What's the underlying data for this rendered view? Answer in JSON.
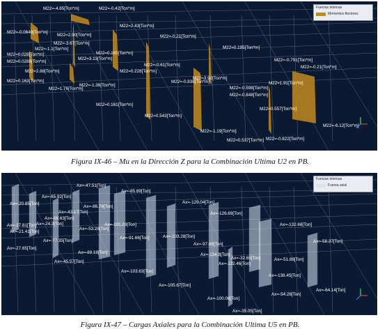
{
  "figure1": {
    "caption": "Figura IX-46 – Mu en la Dirección Z para la Combinación Ultima U2 en PB.",
    "legend_title": "Fuerzas internas",
    "legend_item": "Momentos flectores",
    "legend_color": "#c28a1e",
    "labels": [
      "M22=-4.65[Ton*m]",
      "M22=-0.42[Ton*m]",
      "M22=-0.0646[Ton*m]",
      "M22=2.90[Ton*m]",
      "M22=2.43[Ton*m]",
      "M22=-3.67[Ton*m]",
      "M22=-0.21[Ton*m]",
      "M22=-1.1[Ton*m]",
      "M22=0.028[Ton*m]",
      "M22=0.165[Ton*m]",
      "M22=0.195[Ton*m]",
      "M22=0.0286[Ton*m]",
      "M22=3.13[Ton*m]",
      "M22=-0.61[Ton*m]",
      "M22=-0.791[Ton*m]",
      "M22=-0.21[Ton*m]",
      "M22=2.88[Ton*m]",
      "M22=0.228[Ton*m]",
      "M22=3.92[Ton*m]",
      "M22=0.163[Ton*m]",
      "M22=-1.36[Ton*m]",
      "M22=-0.838[Ton*m]",
      "M22=1.91[Ton*m]",
      "M22=1.76[Ton*m]",
      "M22=-0.598[Ton*m]",
      "M22=-0.848[Ton*m]",
      "M22=0.161[Ton*m]",
      "M22=0.557[Ton*m]",
      "M22=0.543[Ton*m]",
      "M22=-6.12[Ton*m]",
      "M22=-1.19[Ton*m]",
      "M22=0.537[Ton*m]",
      "M22=-0.822[Ton*m]"
    ]
  },
  "figure2": {
    "caption": "Figura IX-47 – Cargas Axiales para la Combinación Ultima U5 en PB.",
    "legend_title": "Fuerzas internas",
    "legend_item": "Fuerza axial",
    "legend_color": "#d8e4f2",
    "labels": [
      "Ax=-47.51[Ton]",
      "Ax=-85.89[Ton]",
      "Ax=-20.85[Ton]",
      "Ax=-65.92[Ton]",
      "Ax=-129.04[Ton]",
      "Ax=-86.78[Ton]",
      "Ax=-43.17[Ton]",
      "Ax=-126.69[Ton]",
      "Ax=-68.63[Ton]",
      "Ax=-27.81[Ton]",
      "Ax=-24.3[Ton]",
      "Ax=-101.23[Ton]",
      "Ax=-132.68[Ton]",
      "Ax=-21.41[Ton]",
      "Ax=-53.28[Ton]",
      "Ax=-91.66[Ton]",
      "Ax=-103.28[Ton]",
      "Ax=-77.35[Ton]",
      "Ax=-58.37[Ton]",
      "Ax=-27.65[Ton]",
      "Ax=-97.68[Ton]",
      "Ax=-89.18[Ton]",
      "Ax=-134.8[Ton]",
      "Ax=-32.65[Ton]",
      "Ax=-51.88[Ton]",
      "Ax=-132.46[Ton]",
      "Ax=-45.57[Ton]",
      "Ax=-103.63[Ton]",
      "Ax=-138.45[Ton]",
      "Ax=-105.67[Ton]",
      "Ax=-64.14[Ton]",
      "Ax=-100.08[Ton]",
      "Ax=-54.28[Ton]",
      "Ax=-35.05[Ton]"
    ]
  }
}
